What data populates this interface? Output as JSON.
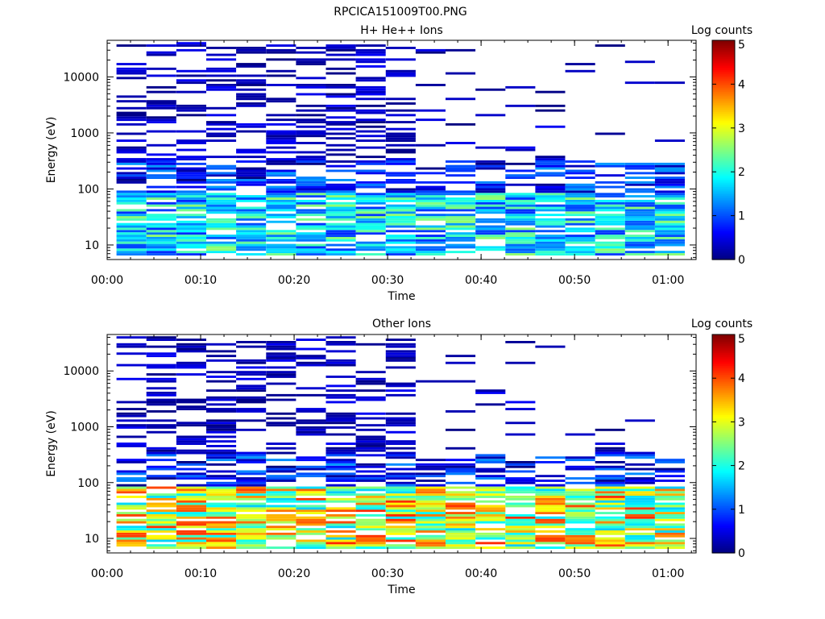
{
  "file_title": "RPCICA151009T00.PNG",
  "chart_data": [
    {
      "type": "heatmap",
      "title": "H+ He++ Ions",
      "xlabel": "Time",
      "ylabel": "Energy (eV)",
      "yscale": "log",
      "ylim": [
        5.5,
        45000
      ],
      "xlim_minutes": [
        0,
        63
      ],
      "x_ticks": [
        "00:00",
        "00:10",
        "00:20",
        "00:30",
        "00:40",
        "00:50",
        "01:00"
      ],
      "y_ticks": [
        "10",
        "100",
        "1000",
        "10000"
      ],
      "colorbar": {
        "label": "Log counts",
        "ticks": [
          "0",
          "1",
          "2",
          "3",
          "4",
          "5"
        ],
        "range": [
          0,
          5
        ]
      },
      "time_bins": [
        "00:02:36",
        "00:05:48",
        "00:09:00",
        "00:12:12",
        "00:15:24",
        "00:18:36",
        "00:21:48",
        "00:25:00",
        "00:28:12",
        "00:31:24",
        "00:34:36",
        "00:37:48",
        "00:41:00",
        "00:44:12",
        "00:47:24",
        "00:50:36",
        "00:53:48",
        "00:57:00",
        "01:00:12"
      ],
      "grid": false,
      "legend": "right"
    },
    {
      "type": "heatmap",
      "title": "Other Ions",
      "xlabel": "Time",
      "ylabel": "Energy (eV)",
      "yscale": "log",
      "ylim": [
        5.5,
        45000
      ],
      "xlim_minutes": [
        0,
        63
      ],
      "x_ticks": [
        "00:00",
        "00:10",
        "00:20",
        "00:30",
        "00:40",
        "00:50",
        "01:00"
      ],
      "y_ticks": [
        "10",
        "100",
        "1000",
        "10000"
      ],
      "colorbar": {
        "label": "Log counts",
        "ticks": [
          "0",
          "1",
          "2",
          "3",
          "4",
          "5"
        ],
        "range": [
          0,
          5
        ]
      },
      "time_bins": [
        "00:02:36",
        "00:05:48",
        "00:09:00",
        "00:12:12",
        "00:15:24",
        "00:18:36",
        "00:21:48",
        "00:25:00",
        "00:28:12",
        "00:31:24",
        "00:34:36",
        "00:37:48",
        "00:41:00",
        "00:44:12",
        "00:47:24",
        "00:50:36",
        "00:53:48",
        "00:57:00",
        "01:00:12"
      ],
      "grid": false,
      "legend": "right"
    }
  ]
}
